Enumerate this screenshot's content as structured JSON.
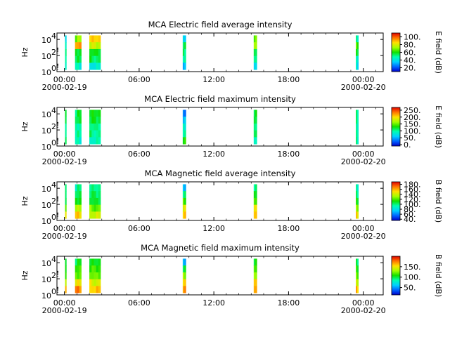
{
  "chart_data": [
    {
      "type": "heatmap",
      "title": "MCA  Electric field average intensity",
      "ylabel": "Hz",
      "colorbar_label": "E field (dB)",
      "colorbar_ticks": [
        "20.",
        "40.",
        "60.",
        "80.",
        "100."
      ],
      "clim": [
        10,
        110
      ],
      "xticks": [
        "00:00",
        "06:00",
        "12:00",
        "18:00",
        "00:00"
      ],
      "xdates": [
        "2000-02-19",
        "2000-02-20"
      ],
      "yticks": [
        "10",
        "10",
        "10"
      ],
      "ytick_exp": [
        "0",
        "2",
        "4"
      ],
      "ylim_log10": [
        0,
        4.8
      ],
      "segments": [
        {
          "t": [
            0.05,
            0.15
          ],
          "v": [
            35,
            45,
            55,
            50,
            40
          ],
          "top": 4.5
        },
        {
          "t": [
            0.85,
            1.35
          ],
          "v": [
            70,
            90,
            60,
            55,
            45
          ],
          "top": 4.5
        },
        {
          "t": [
            2.0,
            2.9
          ],
          "v": [
            85,
            75,
            60,
            55,
            45
          ],
          "top": 4.5
        },
        {
          "t": [
            9.5,
            9.75
          ],
          "v": [
            40,
            55,
            50,
            45,
            35
          ],
          "top": 4.5
        },
        {
          "t": [
            15.2,
            15.45
          ],
          "v": [
            65,
            70,
            55,
            45,
            40
          ],
          "top": 4.5
        },
        {
          "t": [
            23.4,
            23.6
          ],
          "v": [
            50,
            65,
            60,
            45,
            40
          ],
          "top": 4.5
        }
      ]
    },
    {
      "type": "heatmap",
      "title": "MCA  Electric field maximum intensity",
      "ylabel": "Hz",
      "colorbar_label": "E field (dB)",
      "colorbar_ticks": [
        "0.",
        "50.",
        "100.",
        "150.",
        "200.",
        "250."
      ],
      "clim": [
        -10,
        270
      ],
      "xticks": [
        "00:00",
        "06:00",
        "12:00",
        "18:00",
        "00:00"
      ],
      "xdates": [
        "2000-02-19",
        "2000-02-20"
      ],
      "yticks": [
        "10",
        "10",
        "10"
      ],
      "ytick_exp": [
        "0",
        "2",
        "4"
      ],
      "ylim_log10": [
        0,
        4.8
      ],
      "segments": [
        {
          "t": [
            0.05,
            0.15
          ],
          "v": [
            110,
            115,
            110,
            105,
            100
          ],
          "top": 4.5
        },
        {
          "t": [
            0.85,
            1.35
          ],
          "v": [
            115,
            110,
            105,
            100,
            90
          ],
          "top": 4.5
        },
        {
          "t": [
            2.0,
            2.9
          ],
          "v": [
            120,
            115,
            110,
            105,
            100
          ],
          "top": 4.5
        },
        {
          "t": [
            9.5,
            9.75
          ],
          "v": [
            40,
            60,
            80,
            90,
            140
          ],
          "top": 4.5
        },
        {
          "t": [
            15.2,
            15.45
          ],
          "v": [
            115,
            110,
            105,
            100,
            95
          ],
          "top": 4.5
        },
        {
          "t": [
            23.4,
            23.6
          ],
          "v": [
            110,
            105,
            100,
            100,
            95
          ],
          "top": 4.5
        }
      ]
    },
    {
      "type": "heatmap",
      "title": "MCA  Magnetic field average intensity",
      "ylabel": "Hz",
      "colorbar_label": "B field (dB)",
      "colorbar_ticks": [
        "40.",
        "60.",
        "80.",
        "100.",
        "120.",
        "140.",
        "160.",
        "180."
      ],
      "clim": [
        35,
        190
      ],
      "xticks": [
        "00:00",
        "06:00",
        "12:00",
        "18:00",
        "00:00"
      ],
      "xdates": [
        "2000-02-19",
        "2000-02-20"
      ],
      "yticks": [
        "10",
        "10",
        "10"
      ],
      "ytick_exp": [
        "0",
        "2",
        "4"
      ],
      "ylim_log10": [
        0,
        4.8
      ],
      "segments": [
        {
          "t": [
            0.05,
            0.15
          ],
          "v": [
            95,
            100,
            110,
            125,
            140
          ],
          "top": 4.5
        },
        {
          "t": [
            0.85,
            1.35
          ],
          "v": [
            95,
            100,
            115,
            135,
            155
          ],
          "top": 4.5
        },
        {
          "t": [
            2.0,
            2.9
          ],
          "v": [
            95,
            100,
            110,
            125,
            145
          ],
          "top": 4.5
        },
        {
          "t": [
            9.5,
            9.75
          ],
          "v": [
            75,
            100,
            115,
            140,
            160
          ],
          "top": 4.5
        },
        {
          "t": [
            15.2,
            15.45
          ],
          "v": [
            95,
            105,
            120,
            140,
            160
          ],
          "top": 4.5
        },
        {
          "t": [
            23.4,
            23.6
          ],
          "v": [
            95,
            100,
            115,
            130,
            150
          ],
          "top": 4.5
        }
      ]
    },
    {
      "type": "heatmap",
      "title": "MCA  Magnetic field maximum intensity",
      "ylabel": "Hz",
      "colorbar_label": "B field (dB)",
      "colorbar_ticks": [
        "50.",
        "100.",
        "150."
      ],
      "clim": [
        15,
        200
      ],
      "xticks": [
        "00:00",
        "06:00",
        "12:00",
        "18:00",
        "00:00"
      ],
      "xdates": [
        "2000-02-19",
        "2000-02-20"
      ],
      "yticks": [
        "10",
        "10",
        "10"
      ],
      "ytick_exp": [
        "0",
        "2",
        "4"
      ],
      "ylim_log10": [
        0,
        4.8
      ],
      "segments": [
        {
          "t": [
            0.05,
            0.15
          ],
          "v": [
            95,
            105,
            120,
            140,
            155
          ],
          "top": 4.5
        },
        {
          "t": [
            0.85,
            1.35
          ],
          "v": [
            100,
            110,
            125,
            150,
            175
          ],
          "top": 4.5
        },
        {
          "t": [
            2.0,
            2.9
          ],
          "v": [
            100,
            110,
            125,
            145,
            165
          ],
          "top": 4.5
        },
        {
          "t": [
            9.5,
            9.75
          ],
          "v": [
            60,
            100,
            125,
            150,
            175
          ],
          "top": 4.5
        },
        {
          "t": [
            15.2,
            15.45
          ],
          "v": [
            100,
            110,
            130,
            150,
            170
          ],
          "top": 4.5
        },
        {
          "t": [
            23.4,
            23.6
          ],
          "v": [
            100,
            110,
            125,
            140,
            160
          ],
          "top": 4.5
        }
      ]
    }
  ]
}
